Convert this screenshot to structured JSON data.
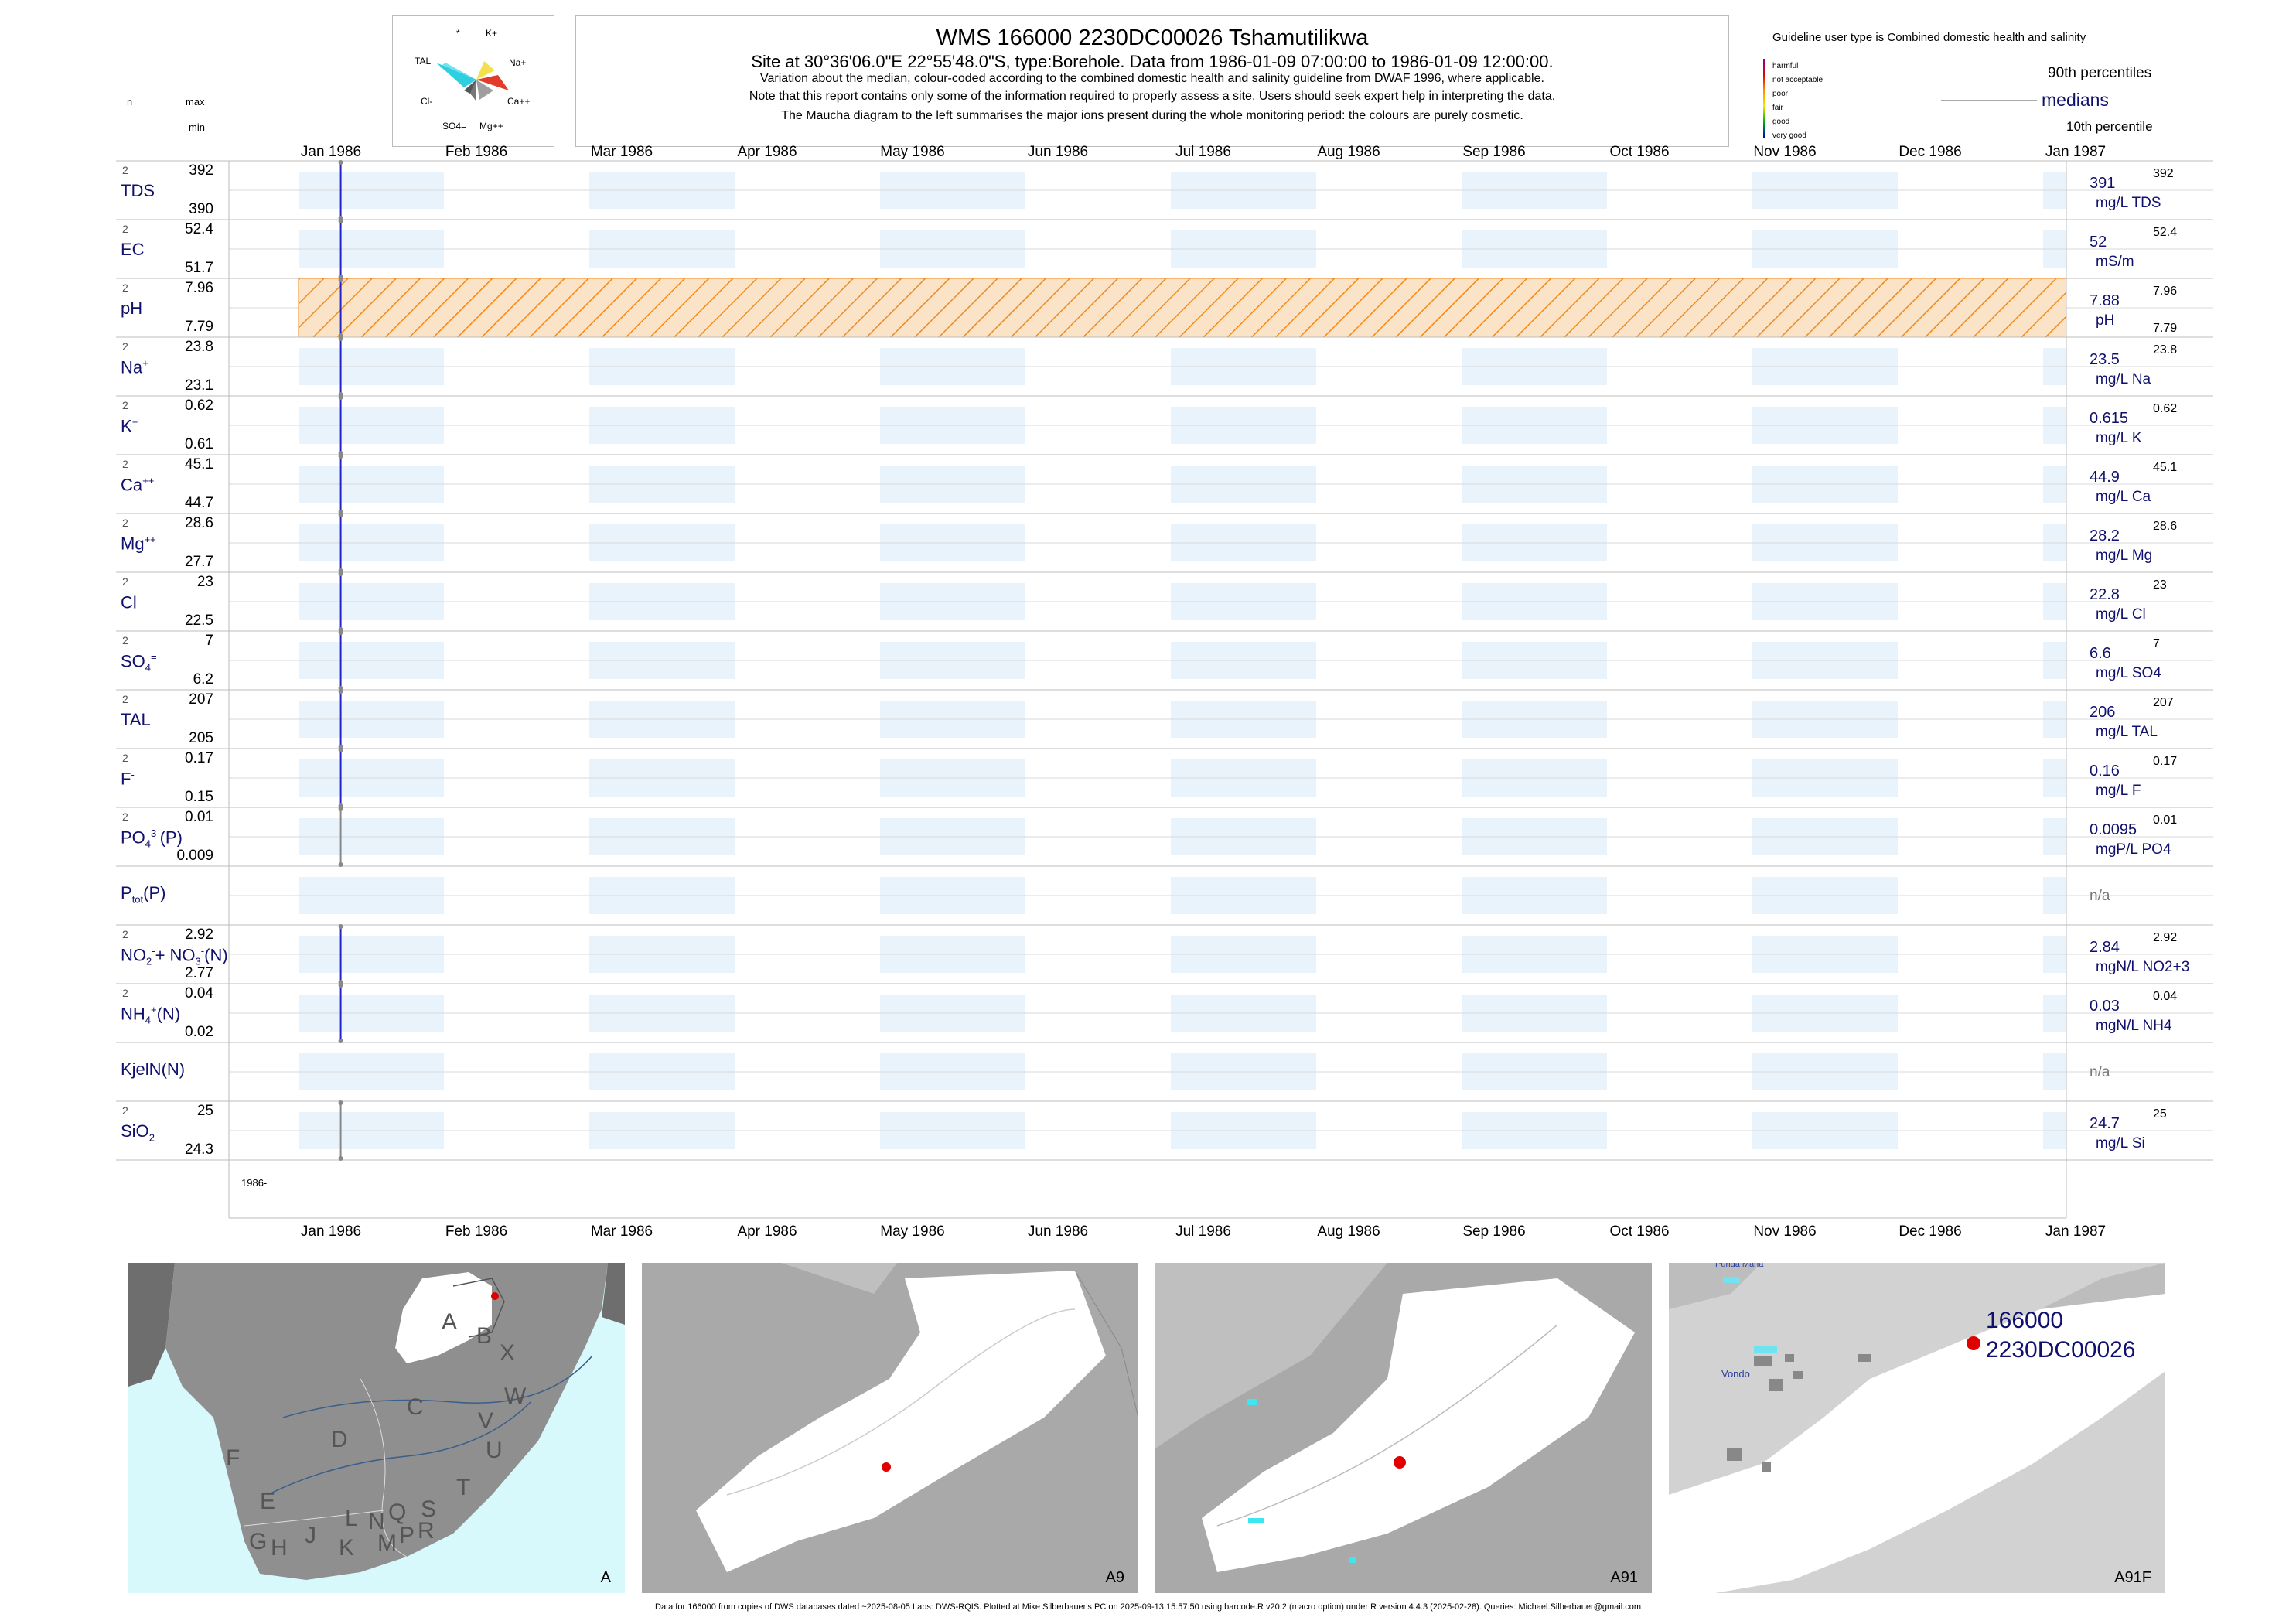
{
  "header": {
    "title": "WMS 166000 2230DC00026 Tshamutilikwa",
    "subtitle": "Site at 30°36'06.0\"E 22°55'48.0\"S, type:Borehole.  Data from 1986-01-09 07:00:00 to 1986-01-09 12:00:00.",
    "note1": "Variation about the median,  colour-coded according to the combined domestic health and salinity guideline from DWAF 1996, where applicable.",
    "note2": "Note that this report contains only some of the information required to properly assess a site. Users should seek expert help in interpreting the data.",
    "note3": "The Maucha diagram to the left summarises the major ions present during the whole monitoring period: the colours are purely cosmetic.",
    "col_n": "n",
    "col_max": "max",
    "col_min": "min"
  },
  "maucha": {
    "labels": [
      "*",
      "K+",
      "Na+",
      "Ca++",
      "Mg++",
      "SO4=",
      "Cl-",
      "TAL"
    ]
  },
  "legend": {
    "guideline_text": "Guideline user type is Combined domestic health and salinity",
    "items": [
      {
        "label": "harmful",
        "color": "#8b008b"
      },
      {
        "label": "not acceptable",
        "color": "#e00000"
      },
      {
        "label": "poor",
        "color": "#ff8c00"
      },
      {
        "label": "fair",
        "color": "#f2e600"
      },
      {
        "label": "good",
        "color": "#00b000"
      },
      {
        "label": "very good",
        "color": "#0000c8"
      }
    ],
    "p90": "90th percentiles",
    "medians": "medians",
    "p10": "10th percentile"
  },
  "axis": {
    "months": [
      "Jan 1986",
      "Feb 1986",
      "Mar 1986",
      "Apr 1986",
      "May 1986",
      "Jun 1986",
      "Jul 1986",
      "Aug 1986",
      "Sep 1986",
      "Oct 1986",
      "Nov 1986",
      "Dec 1986",
      "Jan 1987"
    ],
    "year_label": "1986-"
  },
  "chart_data": {
    "type": "line",
    "x_range": [
      "1986-01-01",
      "1987-01-01"
    ],
    "sample_date": "1986-01-09",
    "series": [
      {
        "key": "tds",
        "name": "TDS",
        "n": "2",
        "max": "392",
        "min": "390",
        "median": "391",
        "unit": "mg/L TDS",
        "p90": "392",
        "p10": "",
        "hatched": false,
        "line": true
      },
      {
        "key": "ec",
        "name": "EC",
        "n": "2",
        "max": "52.4",
        "min": "51.7",
        "median": "52",
        "unit": "mS/m",
        "p90": "52.4",
        "p10": "",
        "hatched": false,
        "line": true
      },
      {
        "key": "ph",
        "name": "pH",
        "n": "2",
        "max": "7.96",
        "min": "7.79",
        "median": "7.88",
        "unit": "pH",
        "p90": "7.96",
        "p10": "7.79",
        "hatched": true,
        "line": true
      },
      {
        "key": "na",
        "name": "Na+",
        "n": "2",
        "max": "23.8",
        "min": "23.1",
        "median": "23.5",
        "unit": "mg/L Na",
        "p90": "23.8",
        "p10": "",
        "hatched": false,
        "line": true
      },
      {
        "key": "k",
        "name": "K+",
        "n": "2",
        "max": "0.62",
        "min": "0.61",
        "median": "0.615",
        "unit": "mg/L K",
        "p90": "0.62",
        "p10": "",
        "hatched": false,
        "line": true
      },
      {
        "key": "ca",
        "name": "Ca++",
        "n": "2",
        "max": "45.1",
        "min": "44.7",
        "median": "44.9",
        "unit": "mg/L Ca",
        "p90": "45.1",
        "p10": "",
        "hatched": false,
        "line": true
      },
      {
        "key": "mg",
        "name": "Mg++",
        "n": "2",
        "max": "28.6",
        "min": "27.7",
        "median": "28.2",
        "unit": "mg/L Mg",
        "p90": "28.6",
        "p10": "",
        "hatched": false,
        "line": true
      },
      {
        "key": "cl",
        "name": "Cl-",
        "n": "2",
        "max": "23",
        "min": "22.5",
        "median": "22.8",
        "unit": "mg/L Cl",
        "p90": "23",
        "p10": "",
        "hatched": false,
        "line": true
      },
      {
        "key": "so4",
        "name": "SO4=",
        "n": "2",
        "max": "7",
        "min": "6.2",
        "median": "6.6",
        "unit": "mg/L SO4",
        "p90": "7",
        "p10": "",
        "hatched": false,
        "line": true
      },
      {
        "key": "tal",
        "name": "TAL",
        "n": "2",
        "max": "207",
        "min": "205",
        "median": "206",
        "unit": "mg/L TAL",
        "p90": "207",
        "p10": "",
        "hatched": false,
        "line": true
      },
      {
        "key": "f",
        "name": "F-",
        "n": "2",
        "max": "0.17",
        "min": "0.15",
        "median": "0.16",
        "unit": "mg/L F",
        "p90": "0.17",
        "p10": "",
        "hatched": false,
        "line": true
      },
      {
        "key": "po4",
        "name": "PO4(P)",
        "n": "2",
        "max": "0.01",
        "min": "0.009",
        "median": "0.0095",
        "unit": "mgP/L PO4",
        "p90": "0.01",
        "p10": "",
        "hatched": false,
        "line": false
      },
      {
        "key": "ptot",
        "name": "Ptot(P)",
        "n": "",
        "max": "",
        "min": "",
        "median": "n/a",
        "unit": "",
        "p90": "",
        "p10": "",
        "hatched": false,
        "line": false
      },
      {
        "key": "no",
        "name": "NO2+NO3(N)",
        "n": "2",
        "max": "2.92",
        "min": "2.77",
        "median": "2.84",
        "unit": "mgN/L NO2+3",
        "p90": "2.92",
        "p10": "",
        "hatched": false,
        "line": true
      },
      {
        "key": "nh4",
        "name": "NH4(N)",
        "n": "2",
        "max": "0.04",
        "min": "0.02",
        "median": "0.03",
        "unit": "mgN/L NH4",
        "p90": "0.04",
        "p10": "",
        "hatched": false,
        "line": true
      },
      {
        "key": "kjel",
        "name": "KjelN(N)",
        "n": "",
        "max": "",
        "min": "",
        "median": "n/a",
        "unit": "",
        "p90": "",
        "p10": "",
        "hatched": false,
        "line": false
      },
      {
        "key": "sio2",
        "name": "SiO2",
        "n": "2",
        "max": "25",
        "min": "24.3",
        "median": "24.7",
        "unit": "mg/L Si",
        "p90": "25",
        "p10": "",
        "hatched": false,
        "line": false
      }
    ]
  },
  "maps": {
    "panels": [
      {
        "label": "A"
      },
      {
        "label": "A9"
      },
      {
        "label": "A91"
      },
      {
        "label": "A91F"
      }
    ],
    "region_letters": [
      "A",
      "B",
      "X",
      "C",
      "W",
      "D",
      "V",
      "U",
      "F",
      "T",
      "E",
      "S",
      "L",
      "N",
      "Q",
      "R",
      "G",
      "H",
      "J",
      "K",
      "M",
      "P"
    ],
    "site_code": "166000",
    "site_name": "2230DC00026",
    "place1": "Vondo",
    "place2": "Punda Maria"
  },
  "footer": "Data for 166000 from copies of DWS databases dated ~2025-08-05 Labs: DWS-RQIS. Plotted at Mike Silberbauer's PC on 2025-09-13 15:57:50 using barcode.R v20.2 (macro option) under R version 4.4.3 (2025-02-28). Queries: Michael.Silberbauer@gmail.com"
}
